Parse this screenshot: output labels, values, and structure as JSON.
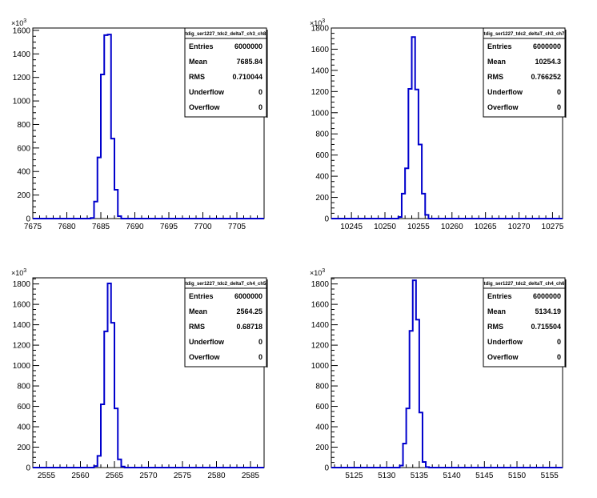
{
  "colors": {
    "line": "#0000cc",
    "frame": "#000000",
    "background": "#ffffff"
  },
  "chart_data": [
    {
      "type": "histogram",
      "title": "tdig_ser1227_tdc2_deltaT_ch3_ch8",
      "x_axis": {
        "range": [
          7675,
          7709
        ],
        "ticks": [
          7675,
          7680,
          7685,
          7690,
          7695,
          7700,
          7705
        ]
      },
      "y_axis": {
        "range": [
          0,
          1620
        ],
        "ticks": [
          0,
          200,
          400,
          600,
          800,
          1000,
          1200,
          1400,
          1600
        ],
        "multiplier": "×10^3"
      },
      "bins": {
        "x_low": [
          7683.5,
          7684,
          7684.5,
          7685,
          7685.5,
          7686,
          7686.5,
          7687,
          7687.5
        ],
        "counts": [
          5,
          145,
          520,
          1225,
          1560,
          1565,
          680,
          245,
          20
        ]
      },
      "stats": {
        "entries": "6000000",
        "mean": "7685.84",
        "rms": "0.710044",
        "underflow": "0",
        "overflow": "0"
      }
    },
    {
      "type": "histogram",
      "title": "tdig_ser1227_tdc2_deltaT_ch3_ch7",
      "x_axis": {
        "range": [
          10242,
          10276.5
        ],
        "ticks": [
          10245,
          10250,
          10255,
          10260,
          10265,
          10270,
          10275
        ]
      },
      "y_axis": {
        "range": [
          0,
          1800
        ],
        "ticks": [
          0,
          200,
          400,
          600,
          800,
          1000,
          1200,
          1400,
          1600,
          1800
        ],
        "multiplier": "×10^3"
      },
      "bins": {
        "x_low": [
          10252,
          10252.5,
          10253,
          10253.5,
          10254,
          10254.5,
          10255,
          10255.5,
          10256
        ],
        "counts": [
          15,
          235,
          475,
          1225,
          1715,
          1220,
          700,
          235,
          35
        ]
      },
      "stats": {
        "entries": "6000000",
        "mean": "10254.3",
        "rms": "0.766252",
        "underflow": "0",
        "overflow": "0"
      }
    },
    {
      "type": "histogram",
      "title": "tdig_ser1227_tdc2_deltaT_ch4_ch5",
      "x_axis": {
        "range": [
          2553,
          2587
        ],
        "ticks": [
          2555,
          2560,
          2565,
          2570,
          2575,
          2580,
          2585
        ]
      },
      "y_axis": {
        "range": [
          0,
          1860
        ],
        "ticks": [
          0,
          200,
          400,
          600,
          800,
          1000,
          1200,
          1400,
          1600,
          1800
        ],
        "multiplier": "×10^3"
      },
      "bins": {
        "x_low": [
          2562,
          2562.5,
          2563,
          2563.5,
          2564,
          2564.5,
          2565,
          2565.5,
          2566
        ],
        "counts": [
          15,
          115,
          620,
          1335,
          1805,
          1420,
          580,
          80,
          10
        ]
      },
      "stats": {
        "entries": "6000000",
        "mean": "2564.25",
        "rms": "0.68718",
        "underflow": "0",
        "overflow": "0"
      }
    },
    {
      "type": "histogram",
      "title": "tdig_ser1227_tdc2_deltaT_ch4_ch6",
      "x_axis": {
        "range": [
          5121.5,
          5157
        ],
        "ticks": [
          5125,
          5130,
          5135,
          5140,
          5145,
          5150,
          5155
        ]
      },
      "y_axis": {
        "range": [
          0,
          1860
        ],
        "ticks": [
          0,
          200,
          400,
          600,
          800,
          1000,
          1200,
          1400,
          1600,
          1800
        ],
        "multiplier": "×10^3"
      },
      "bins": {
        "x_low": [
          5132,
          5132.5,
          5133,
          5133.5,
          5134,
          5134.5,
          5135,
          5135.5,
          5136
        ],
        "counts": [
          20,
          235,
          580,
          1340,
          1835,
          1450,
          540,
          55,
          5
        ]
      },
      "stats": {
        "entries": "6000000",
        "mean": "5134.19",
        "rms": "0.715504",
        "underflow": "0",
        "overflow": "0"
      }
    }
  ],
  "stat_labels": {
    "entries": "Entries",
    "mean": "Mean",
    "rms": "RMS",
    "underflow": "Underflow",
    "overflow": "Overflow"
  }
}
